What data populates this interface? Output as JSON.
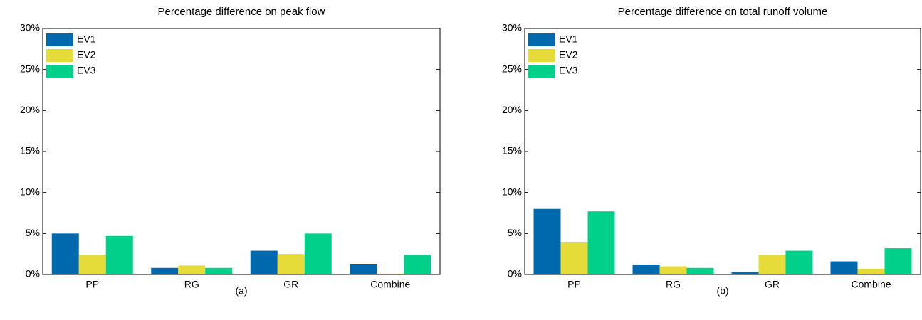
{
  "chart_data": [
    {
      "type": "bar",
      "title": "Percentage difference on peak flow",
      "caption": "(a)",
      "categories": [
        "PP",
        "RG",
        "GR",
        "Combine"
      ],
      "series": [
        {
          "name": "EV1",
          "color": "#0068ad",
          "values": [
            5.0,
            0.8,
            2.9,
            1.3
          ]
        },
        {
          "name": "EV2",
          "color": "#e5dc3a",
          "values": [
            2.4,
            1.1,
            2.5,
            0.1
          ]
        },
        {
          "name": "EV3",
          "color": "#00d08a",
          "values": [
            4.7,
            0.8,
            5.0,
            2.4
          ]
        }
      ],
      "ylim": [
        0,
        30
      ],
      "yticks": [
        {
          "value": 0,
          "label": "0%"
        },
        {
          "value": 5,
          "label": "5%"
        },
        {
          "value": 10,
          "label": "10%"
        },
        {
          "value": 15,
          "label": "15%"
        },
        {
          "value": 20,
          "label": "20%"
        },
        {
          "value": 25,
          "label": "25%"
        },
        {
          "value": 30,
          "label": "30%"
        }
      ],
      "legend": "upper-left"
    },
    {
      "type": "bar",
      "title": "Percentage difference on total runoff volume",
      "caption": "(b)",
      "categories": [
        "PP",
        "RG",
        "GR",
        "Combine"
      ],
      "series": [
        {
          "name": "EV1",
          "color": "#0068ad",
          "values": [
            8.0,
            1.2,
            0.3,
            1.6
          ]
        },
        {
          "name": "EV2",
          "color": "#e5dc3a",
          "values": [
            3.9,
            1.0,
            2.4,
            0.7
          ]
        },
        {
          "name": "EV3",
          "color": "#00d08a",
          "values": [
            7.7,
            0.8,
            2.9,
            3.2
          ]
        }
      ],
      "ylim": [
        0,
        30
      ],
      "yticks": [
        {
          "value": 0,
          "label": "0%"
        },
        {
          "value": 5,
          "label": "5%"
        },
        {
          "value": 10,
          "label": "10%"
        },
        {
          "value": 15,
          "label": "15%"
        },
        {
          "value": 20,
          "label": "20%"
        },
        {
          "value": 25,
          "label": "25%"
        },
        {
          "value": 30,
          "label": "30%"
        }
      ],
      "legend": "upper-left"
    }
  ]
}
